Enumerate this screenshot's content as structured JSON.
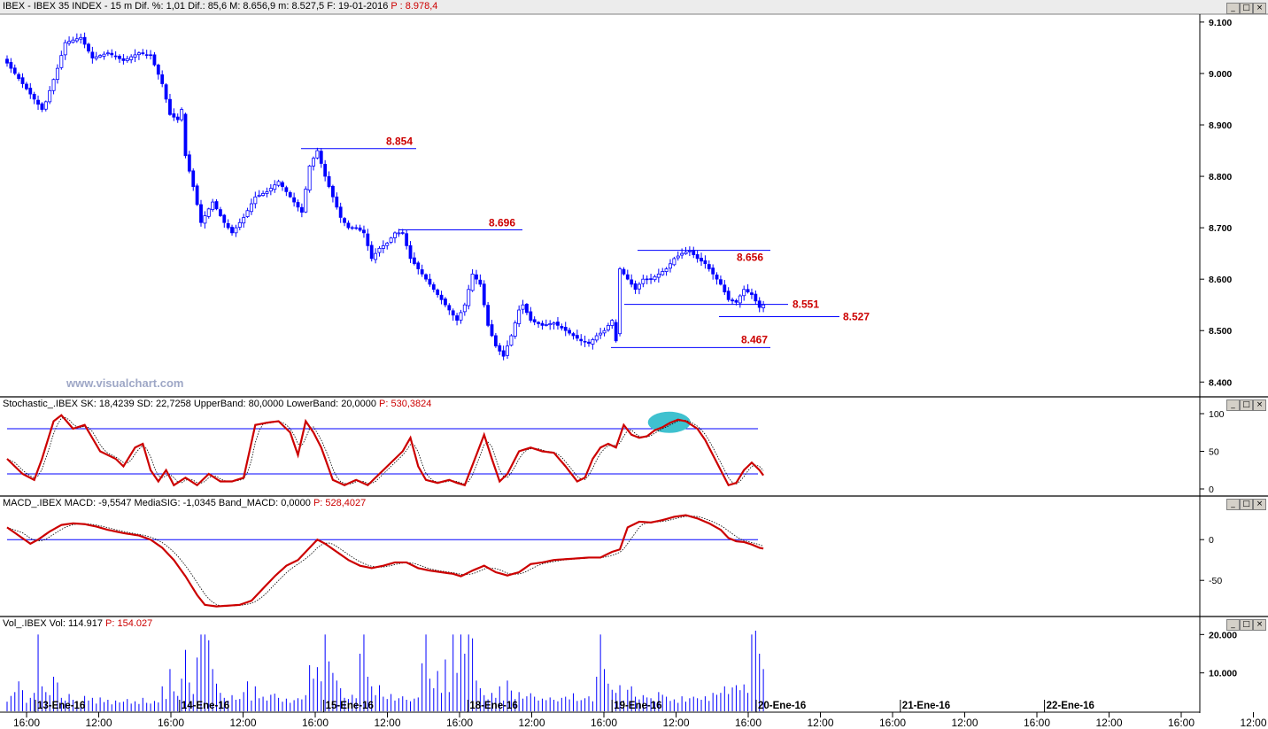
{
  "headers": {
    "main": {
      "label": "IBEX - IBEX 35 INDEX - 15 m  Dif. %: 1,01  Dif.: 85,6  M: 8.656,9  m: 8.527,5  F: 19-01-2016",
      "p": "P : 8.978,4"
    },
    "stoch": {
      "label": "Stochastic_.IBEX SK: 18,4239  SD: 22,7258  UpperBand: 80,0000  LowerBand: 20,0000",
      "p": "P: 530,3824"
    },
    "macd": {
      "label": "MACD_.IBEX MACD: -9,5547  MediaSIG: -1,0345  Band_MACD: 0,0000",
      "p": "P: 528,4027"
    },
    "vol": {
      "label": "Vol_.IBEX Vol: 114.917",
      "p": "P: 154.027"
    }
  },
  "watermark": "www.visualchart.com",
  "window_buttons": [
    "_",
    "□",
    "×"
  ],
  "colors": {
    "candle": "#0000ff",
    "level_line": "#0000ff",
    "level_label": "#cc0000",
    "indicator_main": "#cc0000",
    "indicator_signal": "#000000",
    "band": "#0000ff",
    "highlight": "#3fc1cf"
  },
  "chart_data": [
    {
      "type": "candlestick",
      "title": "IBEX - IBEX 35 INDEX - 15 m",
      "y_ticks": [
        "9.100",
        "9.000",
        "8.900",
        "8.800",
        "8.700",
        "8.600",
        "8.500",
        "8.400"
      ],
      "ylim": [
        8385,
        9105
      ],
      "x_time_labels": [
        "16:00",
        "12:00",
        "16:00",
        "12:00",
        "16:00",
        "12:00",
        "16:00",
        "12:00",
        "16:00",
        "12:00",
        "16:00",
        "12:00",
        "16:00",
        "12:00",
        "16:00",
        "12:00",
        "16:00",
        "12:00",
        "16:0"
      ],
      "x_day_labels": [
        "13-Ene-16",
        "14-Ene-16",
        "15-Ene-16",
        "18-Ene-16",
        "19-Ene-16",
        "20-Ene-16",
        "21-Ene-16",
        "22-Ene-16"
      ],
      "levels": [
        {
          "label": "8.854",
          "value": 8854
        },
        {
          "label": "8.696",
          "value": 8696
        },
        {
          "label": "8.656",
          "value": 8656
        },
        {
          "label": "8.551",
          "value": 8551
        },
        {
          "label": "8.527",
          "value": 8527
        },
        {
          "label": "8.467",
          "value": 8467
        }
      ],
      "path_anchors": [
        [
          0,
          9020
        ],
        [
          3,
          8990
        ],
        [
          6,
          8960
        ],
        [
          9,
          8930
        ],
        [
          10,
          8945
        ],
        [
          13,
          9010
        ],
        [
          15,
          9060
        ],
        [
          19,
          9070
        ],
        [
          22,
          9030
        ],
        [
          26,
          9040
        ],
        [
          30,
          9025
        ],
        [
          34,
          9040
        ],
        [
          37,
          9035
        ],
        [
          40,
          8980
        ],
        [
          42,
          8920
        ],
        [
          44,
          8910
        ],
        [
          45,
          8930
        ],
        [
          46,
          8840
        ],
        [
          48,
          8780
        ],
        [
          50,
          8710
        ],
        [
          53,
          8750
        ],
        [
          56,
          8710
        ],
        [
          58,
          8690
        ],
        [
          61,
          8720
        ],
        [
          64,
          8760
        ],
        [
          67,
          8770
        ],
        [
          70,
          8790
        ],
        [
          73,
          8760
        ],
        [
          76,
          8730
        ],
        [
          78,
          8820
        ],
        [
          80,
          8850
        ],
        [
          82,
          8800
        ],
        [
          84,
          8760
        ],
        [
          86,
          8720
        ],
        [
          88,
          8700
        ],
        [
          90,
          8700
        ],
        [
          92,
          8690
        ],
        [
          94,
          8640
        ],
        [
          96,
          8660
        ],
        [
          98,
          8670
        ],
        [
          100,
          8690
        ],
        [
          102,
          8690
        ],
        [
          104,
          8640
        ],
        [
          106,
          8620
        ],
        [
          108,
          8600
        ],
        [
          110,
          8580
        ],
        [
          112,
          8560
        ],
        [
          114,
          8540
        ],
        [
          116,
          8520
        ],
        [
          118,
          8550
        ],
        [
          120,
          8610
        ],
        [
          122,
          8590
        ],
        [
          124,
          8510
        ],
        [
          126,
          8470
        ],
        [
          128,
          8450
        ],
        [
          130,
          8490
        ],
        [
          132,
          8540
        ],
        [
          133,
          8550
        ],
        [
          135,
          8520
        ],
        [
          138,
          8510
        ],
        [
          141,
          8515
        ],
        [
          144,
          8500
        ],
        [
          146,
          8490
        ],
        [
          148,
          8480
        ],
        [
          150,
          8475
        ],
        [
          152,
          8490
        ],
        [
          154,
          8500
        ],
        [
          156,
          8520
        ],
        [
          157,
          8480
        ],
        [
          158,
          8620
        ],
        [
          160,
          8600
        ],
        [
          162,
          8580
        ],
        [
          164,
          8600
        ],
        [
          166,
          8600
        ],
        [
          168,
          8610
        ],
        [
          170,
          8620
        ],
        [
          172,
          8640
        ],
        [
          174,
          8650
        ],
        [
          176,
          8655
        ],
        [
          178,
          8640
        ],
        [
          180,
          8630
        ],
        [
          182,
          8610
        ],
        [
          184,
          8590
        ],
        [
          186,
          8560
        ],
        [
          188,
          8555
        ],
        [
          190,
          8580
        ],
        [
          192,
          8570
        ],
        [
          194,
          8545
        ],
        [
          195,
          8550
        ]
      ]
    },
    {
      "type": "line",
      "title": "Stochastic_.IBEX",
      "y_ticks": [
        "100",
        "50",
        "0"
      ],
      "ylim": [
        0,
        100
      ],
      "bands": [
        80,
        20
      ],
      "series_names": [
        "SK",
        "SD"
      ],
      "sk_anchors": [
        [
          0,
          40
        ],
        [
          4,
          20
        ],
        [
          7,
          12
        ],
        [
          9,
          40
        ],
        [
          12,
          90
        ],
        [
          14,
          98
        ],
        [
          17,
          80
        ],
        [
          20,
          85
        ],
        [
          24,
          50
        ],
        [
          28,
          40
        ],
        [
          30,
          30
        ],
        [
          33,
          55
        ],
        [
          35,
          60
        ],
        [
          37,
          25
        ],
        [
          39,
          10
        ],
        [
          41,
          25
        ],
        [
          43,
          5
        ],
        [
          46,
          15
        ],
        [
          49,
          5
        ],
        [
          52,
          20
        ],
        [
          55,
          10
        ],
        [
          58,
          10
        ],
        [
          61,
          15
        ],
        [
          64,
          85
        ],
        [
          67,
          88
        ],
        [
          70,
          90
        ],
        [
          73,
          75
        ],
        [
          75,
          45
        ],
        [
          77,
          90
        ],
        [
          79,
          75
        ],
        [
          81,
          55
        ],
        [
          84,
          12
        ],
        [
          87,
          5
        ],
        [
          90,
          12
        ],
        [
          93,
          5
        ],
        [
          96,
          20
        ],
        [
          99,
          35
        ],
        [
          102,
          50
        ],
        [
          104,
          68
        ],
        [
          106,
          30
        ],
        [
          108,
          12
        ],
        [
          111,
          8
        ],
        [
          114,
          12
        ],
        [
          116,
          8
        ],
        [
          118,
          5
        ],
        [
          121,
          45
        ],
        [
          123,
          72
        ],
        [
          125,
          40
        ],
        [
          127,
          10
        ],
        [
          129,
          20
        ],
        [
          132,
          50
        ],
        [
          135,
          55
        ],
        [
          138,
          50
        ],
        [
          141,
          48
        ],
        [
          144,
          30
        ],
        [
          147,
          10
        ],
        [
          149,
          15
        ],
        [
          151,
          40
        ],
        [
          153,
          55
        ],
        [
          155,
          60
        ],
        [
          157,
          55
        ],
        [
          159,
          85
        ],
        [
          161,
          72
        ],
        [
          163,
          68
        ],
        [
          165,
          70
        ],
        [
          167,
          78
        ],
        [
          169,
          82
        ],
        [
          171,
          88
        ],
        [
          173,
          92
        ],
        [
          175,
          90
        ],
        [
          178,
          80
        ],
        [
          180,
          65
        ],
        [
          182,
          45
        ],
        [
          184,
          25
        ],
        [
          186,
          5
        ],
        [
          188,
          8
        ],
        [
          190,
          25
        ],
        [
          192,
          35
        ],
        [
          194,
          25
        ],
        [
          195,
          18
        ]
      ],
      "highlight_index": 173
    },
    {
      "type": "line",
      "title": "MACD_.IBEX",
      "y_ticks": [
        "0",
        "-50"
      ],
      "ylim": [
        -90,
        35
      ],
      "zero_band": 0,
      "series_names": [
        "MACD",
        "MediaSIG"
      ],
      "macd_anchors": [
        [
          0,
          15
        ],
        [
          3,
          5
        ],
        [
          6,
          -5
        ],
        [
          8,
          0
        ],
        [
          11,
          10
        ],
        [
          14,
          18
        ],
        [
          17,
          20
        ],
        [
          20,
          19
        ],
        [
          23,
          16
        ],
        [
          26,
          12
        ],
        [
          30,
          8
        ],
        [
          34,
          5
        ],
        [
          37,
          0
        ],
        [
          40,
          -10
        ],
        [
          43,
          -25
        ],
        [
          46,
          -45
        ],
        [
          49,
          -68
        ],
        [
          51,
          -80
        ],
        [
          54,
          -82
        ],
        [
          57,
          -81
        ],
        [
          60,
          -80
        ],
        [
          63,
          -75
        ],
        [
          66,
          -60
        ],
        [
          69,
          -45
        ],
        [
          72,
          -32
        ],
        [
          75,
          -25
        ],
        [
          78,
          -10
        ],
        [
          80,
          0
        ],
        [
          82,
          -5
        ],
        [
          85,
          -15
        ],
        [
          88,
          -25
        ],
        [
          91,
          -32
        ],
        [
          94,
          -35
        ],
        [
          97,
          -32
        ],
        [
          100,
          -28
        ],
        [
          103,
          -28
        ],
        [
          106,
          -35
        ],
        [
          109,
          -38
        ],
        [
          112,
          -40
        ],
        [
          115,
          -42
        ],
        [
          117,
          -45
        ],
        [
          120,
          -38
        ],
        [
          123,
          -32
        ],
        [
          126,
          -40
        ],
        [
          129,
          -44
        ],
        [
          132,
          -40
        ],
        [
          135,
          -30
        ],
        [
          138,
          -28
        ],
        [
          141,
          -25
        ],
        [
          144,
          -24
        ],
        [
          147,
          -23
        ],
        [
          150,
          -22
        ],
        [
          153,
          -22
        ],
        [
          156,
          -15
        ],
        [
          158,
          -12
        ],
        [
          160,
          15
        ],
        [
          163,
          22
        ],
        [
          166,
          21
        ],
        [
          169,
          24
        ],
        [
          172,
          28
        ],
        [
          175,
          30
        ],
        [
          178,
          26
        ],
        [
          181,
          20
        ],
        [
          184,
          12
        ],
        [
          186,
          2
        ],
        [
          188,
          -2
        ],
        [
          190,
          -3
        ],
        [
          192,
          -6
        ],
        [
          194,
          -10
        ],
        [
          195,
          -11
        ]
      ]
    },
    {
      "type": "bar",
      "title": "Vol_.IBEX",
      "y_ticks": [
        "20.000",
        "10.000"
      ],
      "ylim": [
        0,
        21000
      ],
      "volumes": [
        2500,
        4000,
        5000,
        7800,
        5500,
        2200,
        3500,
        4800,
        20000,
        6500,
        5000,
        4200,
        9000,
        7500,
        3500,
        2800,
        4500,
        3000,
        2500,
        2200,
        4000,
        2800,
        3500,
        2000,
        3600,
        2400,
        3000,
        1800,
        2800,
        2300,
        2500,
        3200,
        2000,
        2600,
        1900,
        3500,
        2200,
        2000,
        2700,
        2300,
        6500,
        3200,
        11000,
        5200,
        4000,
        8500,
        16000,
        7500,
        4500,
        14000,
        20000,
        20000,
        18500,
        11000,
        7200,
        4800,
        3500,
        2800,
        4200,
        3000,
        3200,
        5000,
        7800,
        2800,
        6500,
        3400,
        3800,
        2800,
        4300,
        4600,
        3500,
        2500,
        3300,
        2200,
        2900,
        3400,
        3100,
        4200,
        12000,
        8500,
        11500,
        7800,
        20000,
        13000,
        10000,
        8000,
        6000,
        3500,
        3200,
        4300,
        3400,
        15000,
        20000,
        9000,
        6500,
        4200,
        6800,
        3800,
        3200,
        4500,
        2800,
        3400,
        3900,
        3000,
        2600,
        3300,
        3600,
        12500,
        20000,
        8500,
        6000,
        10500,
        4800,
        13500,
        5000,
        20000,
        10000,
        20000,
        15000,
        20000,
        19000,
        8000,
        6000,
        4200,
        3100,
        4800,
        3500,
        6500,
        2800,
        8000,
        5400,
        3200,
        5000,
        3300,
        3900,
        4700,
        3800,
        2800,
        3300,
        2900,
        3600,
        3000,
        2600,
        3500,
        3800,
        3100,
        4700,
        2700,
        2900,
        3400,
        3900,
        2600,
        9000,
        20000,
        11000,
        7200,
        5600,
        4800,
        6800,
        2800,
        5600,
        6500,
        3800,
        3100,
        4200,
        3600,
        3400,
        2500,
        5000,
        4300,
        3800,
        2700,
        3100,
        2200,
        3900,
        2500,
        3400,
        3800,
        3400,
        3000,
        3900,
        2700,
        4800,
        4300,
        4800,
        6500,
        4500,
        6200,
        6800,
        5500,
        7000,
        4800,
        20000,
        21000,
        15000,
        11000
      ]
    }
  ]
}
